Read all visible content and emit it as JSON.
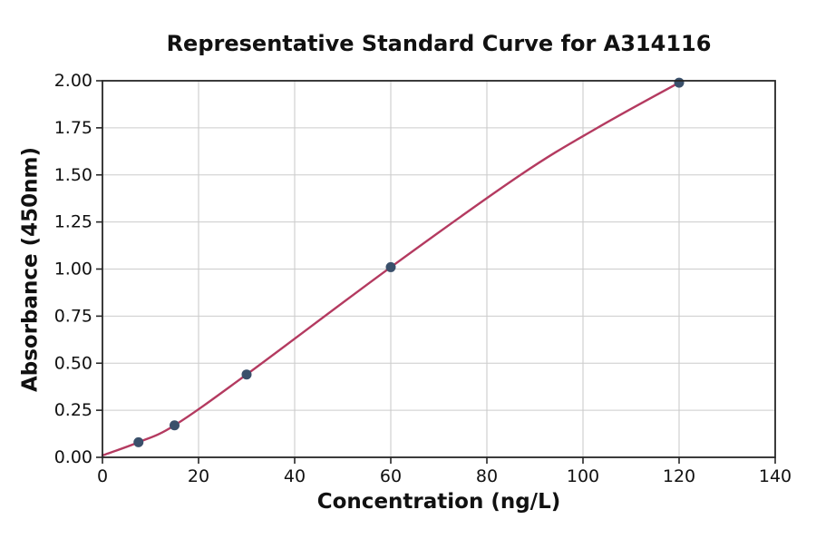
{
  "chart_data": {
    "type": "scatter",
    "title": "Representative Standard Curve for A314116",
    "xlabel": "Concentration (ng/L)",
    "ylabel": "Absorbance (450nm)",
    "xlim": [
      0,
      140
    ],
    "ylim": [
      0,
      2.0
    ],
    "grid": true,
    "legend": "none",
    "x_ticks": [
      0,
      20,
      40,
      60,
      80,
      100,
      120,
      140
    ],
    "x_tick_labels": [
      "0",
      "20",
      "40",
      "60",
      "80",
      "100",
      "120",
      "140"
    ],
    "y_ticks": [
      0.0,
      0.25,
      0.5,
      0.75,
      1.0,
      1.25,
      1.5,
      1.75,
      2.0
    ],
    "y_tick_labels": [
      "0.00",
      "0.25",
      "0.50",
      "0.75",
      "1.00",
      "1.25",
      "1.50",
      "1.75",
      "2.00"
    ],
    "series": [
      {
        "name": "standard-points",
        "type": "scatter",
        "x": [
          7.5,
          15,
          30,
          60,
          120
        ],
        "y": [
          0.08,
          0.17,
          0.44,
          1.01,
          1.99
        ]
      },
      {
        "name": "fitted-curve",
        "type": "line",
        "x": [
          0,
          7.5,
          15,
          30,
          60,
          87,
          103,
          120
        ],
        "y": [
          0.01,
          0.08,
          0.17,
          0.44,
          1.01,
          1.5,
          1.75,
          1.99
        ]
      }
    ],
    "colors": {
      "curve": "#b43a60",
      "points": "#3a506b",
      "grid": "#cccccc",
      "spine": "#262626",
      "text": "#111111",
      "background": "#ffffff"
    }
  }
}
